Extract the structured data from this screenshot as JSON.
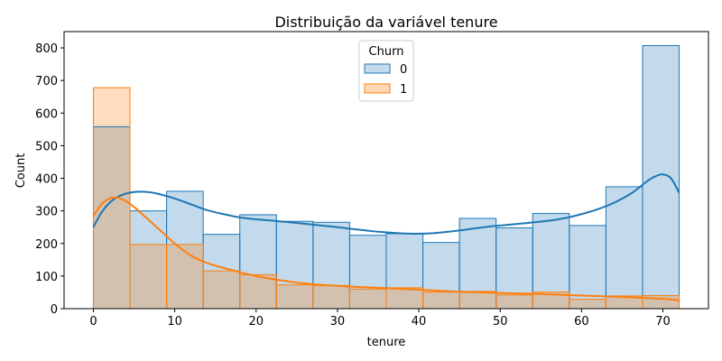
{
  "chart_data": {
    "type": "histogram",
    "title": "Distribuição da variável tenure",
    "xlabel": "tenure",
    "ylabel": "Count",
    "xlim": [
      -3.6,
      75.6
    ],
    "ylim": [
      0,
      850
    ],
    "xticks": [
      0,
      10,
      20,
      30,
      40,
      50,
      60,
      70
    ],
    "yticks": [
      0,
      100,
      200,
      300,
      400,
      500,
      600,
      700,
      800
    ],
    "bin_edges": [
      0,
      4.5,
      9,
      13.5,
      18,
      22.5,
      27,
      31.5,
      36,
      40.5,
      45,
      49.5,
      54,
      58.5,
      63,
      67.5,
      72
    ],
    "legend": {
      "title": "Churn",
      "position": "upper-center"
    },
    "series": [
      {
        "name": "0",
        "color": "#1f77b4",
        "fill": "#c5daed",
        "counts": [
          558,
          300,
          360,
          228,
          288,
          268,
          265,
          225,
          230,
          203,
          277,
          248,
          292,
          255,
          374,
          807
        ],
        "kde_x": [
          0,
          1,
          2,
          3,
          4,
          5,
          6,
          7,
          8,
          10,
          12,
          14,
          16,
          18,
          20,
          22,
          25,
          28,
          30,
          32,
          35,
          38,
          40,
          42,
          45,
          48,
          50,
          53,
          56,
          58,
          60,
          62,
          64,
          66,
          67,
          68,
          69,
          70,
          71,
          72
        ],
        "kde_y": [
          250,
          295,
          325,
          343,
          353,
          358,
          359,
          357,
          352,
          338,
          320,
          302,
          290,
          280,
          274,
          270,
          263,
          255,
          250,
          244,
          236,
          231,
          230,
          232,
          240,
          250,
          255,
          262,
          270,
          278,
          290,
          305,
          325,
          352,
          370,
          390,
          405,
          412,
          400,
          355
        ]
      },
      {
        "name": "1",
        "color": "#ff7f0e",
        "fill": "#ffd7b3",
        "counts": [
          678,
          197,
          197,
          116,
          104,
          73,
          71,
          60,
          64,
          51,
          53,
          42,
          51,
          29,
          39,
          40
        ],
        "kde_x": [
          0,
          1,
          2,
          3,
          4,
          5,
          6,
          8,
          10,
          12,
          14,
          16,
          18,
          20,
          22,
          25,
          28,
          30,
          33,
          36,
          40,
          45,
          50,
          55,
          60,
          65,
          70,
          72
        ],
        "kde_y": [
          285,
          320,
          338,
          340,
          330,
          312,
          290,
          245,
          200,
          163,
          140,
          125,
          112,
          100,
          91,
          80,
          73,
          70,
          66,
          63,
          58,
          52,
          48,
          45,
          40,
          36,
          30,
          26
        ]
      }
    ]
  }
}
